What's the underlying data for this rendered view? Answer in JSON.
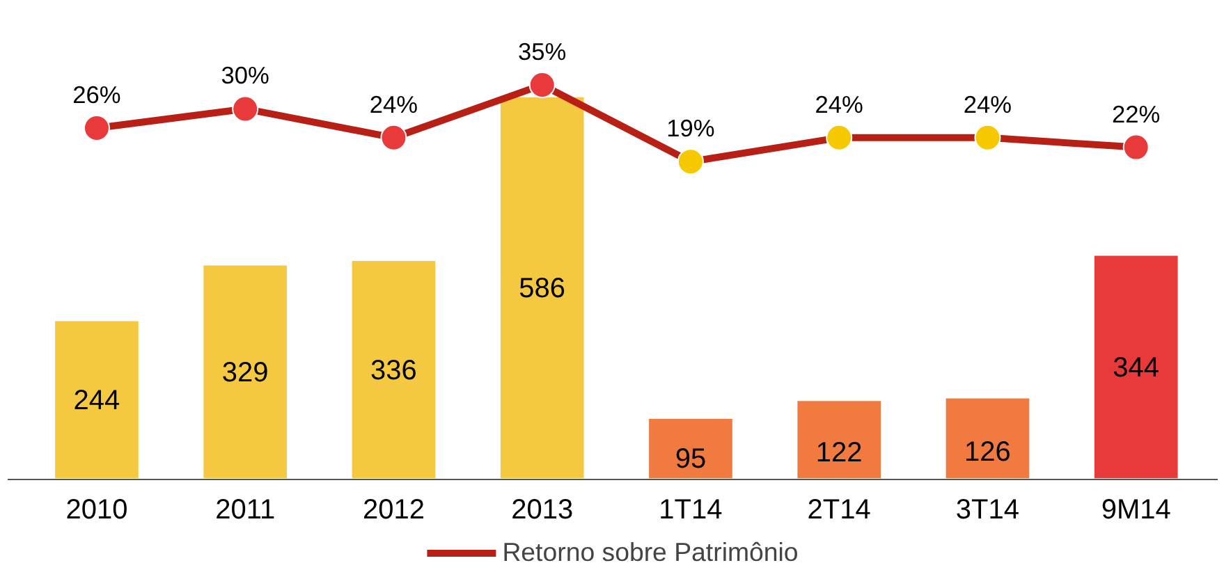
{
  "chart_data": {
    "type": "bar",
    "categories": [
      "2010",
      "2011",
      "2012",
      "2013",
      "1T14",
      "2T14",
      "3T14",
      "9M14"
    ],
    "series": [
      {
        "colors": [
          "#f5c842",
          "#f5c842",
          "#f5c842",
          "#f5c842",
          "#f07a40",
          "#f07a40",
          "#f07a40",
          "#e83a3a"
        ],
        "values": [
          244,
          329,
          336,
          586,
          95,
          122,
          126,
          344
        ]
      },
      {
        "type": "line",
        "name": "Retorno sobre Patrimônio",
        "color": "#b82016",
        "axis": "y2",
        "colors": [
          "#e83a3a",
          "#e83a3a",
          "#e83a3a",
          "#e83a3a",
          "#f5c800",
          "#f5c800",
          "#f5c800",
          "#e83a3a"
        ],
        "values": [
          26,
          30,
          24,
          35,
          19,
          24,
          24,
          22
        ],
        "value_labels": [
          "26%",
          "30%",
          "24%",
          "35%",
          "19%",
          "24%",
          "24%",
          "22%"
        ]
      }
    ],
    "data_labels": true,
    "legend": "bottom",
    "marker": "circle",
    "grid": false
  }
}
